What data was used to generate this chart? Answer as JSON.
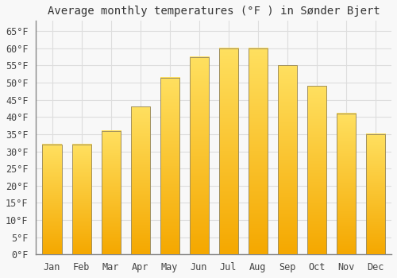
{
  "title": "Average monthly temperatures (°F ) in Sønder Bjert",
  "months": [
    "Jan",
    "Feb",
    "Mar",
    "Apr",
    "May",
    "Jun",
    "Jul",
    "Aug",
    "Sep",
    "Oct",
    "Nov",
    "Dec"
  ],
  "values": [
    32,
    32,
    36,
    43,
    51.5,
    57.5,
    60,
    60,
    55,
    49,
    41,
    35
  ],
  "bar_color_bottom": "#F5A800",
  "bar_color_top": "#FFE060",
  "bar_color_center": "#FFD040",
  "bar_edge_color": "#A09060",
  "background_color": "#F8F8F8",
  "grid_color": "#DDDDDD",
  "yticks": [
    0,
    5,
    10,
    15,
    20,
    25,
    30,
    35,
    40,
    45,
    50,
    55,
    60,
    65
  ],
  "ylim": [
    0,
    68
  ],
  "title_fontsize": 10,
  "tick_fontsize": 8.5,
  "font_family": "monospace"
}
